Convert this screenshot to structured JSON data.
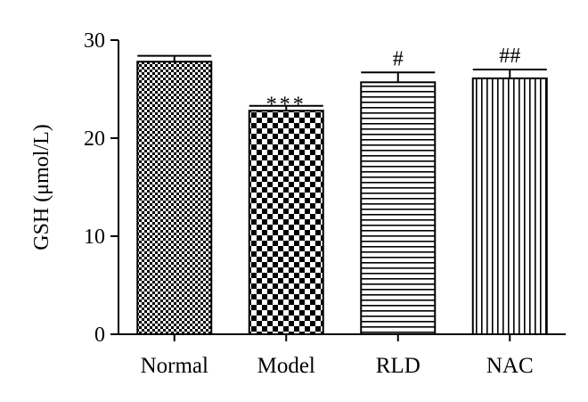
{
  "chart_data": {
    "type": "bar",
    "categories": [
      "Normal",
      "Model",
      "RLD",
      "NAC"
    ],
    "values": [
      27.8,
      22.8,
      25.7,
      26.1
    ],
    "errors": [
      0.6,
      0.5,
      1.0,
      0.9
    ],
    "annotations": [
      "",
      "***",
      "#",
      "##"
    ],
    "patterns": [
      "fine-checker",
      "coarse-checker",
      "horizontal-lines",
      "vertical-lines"
    ],
    "title": "",
    "xlabel": "",
    "ylabel": "GSH (μmol/L)",
    "ylim": [
      0,
      30
    ],
    "yticks": [
      0,
      10,
      20,
      30
    ],
    "grid": false,
    "legend": "none",
    "colors": {
      "ink": "#000000",
      "background": "#ffffff"
    }
  }
}
